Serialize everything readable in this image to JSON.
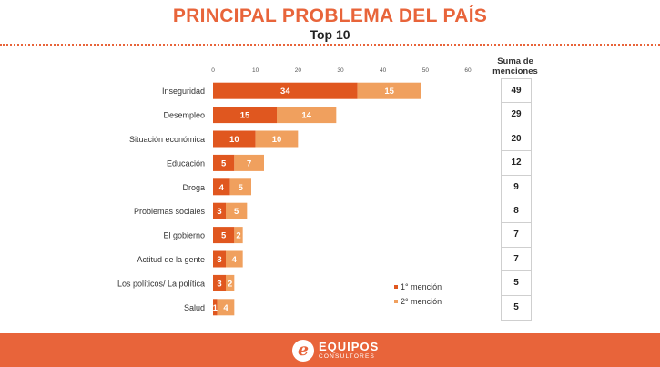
{
  "title": "PRINCIPAL PROBLEMA DEL PAÍS",
  "subtitle": "Top 10",
  "sum_header": [
    "Suma de",
    "menciones"
  ],
  "footer": {
    "logo_letter": "e",
    "brand": "EQUIPOS",
    "brand_sub": "CONSULTORES"
  },
  "colors": {
    "first": "#e0571f",
    "second": "#f0a05e",
    "accent": "#e8643a"
  },
  "chart_data": {
    "type": "bar",
    "orientation": "horizontal",
    "stacked": true,
    "title": "PRINCIPAL PROBLEMA DEL PAÍS",
    "subtitle": "Top 10",
    "categories": [
      "Inseguridad",
      "Desempleo",
      "Situación económica",
      "Educación",
      "Droga",
      "Problemas sociales",
      "El gobierno",
      "Actitud de la gente",
      "Los políticos/ La política",
      "Salud"
    ],
    "series": [
      {
        "name": "1° mención",
        "values": [
          34,
          15,
          10,
          5,
          4,
          3,
          5,
          3,
          3,
          1
        ]
      },
      {
        "name": "2° mención",
        "values": [
          15,
          14,
          10,
          7,
          5,
          5,
          2,
          4,
          2,
          4
        ]
      }
    ],
    "totals": [
      49,
      29,
      20,
      12,
      9,
      8,
      7,
      7,
      5,
      5
    ],
    "xticks": [
      0,
      10,
      20,
      30,
      40,
      50,
      60
    ],
    "xlim": [
      0,
      60
    ],
    "xlabel": "",
    "ylabel": "",
    "grid": false,
    "legend_position": "bottom-right"
  }
}
